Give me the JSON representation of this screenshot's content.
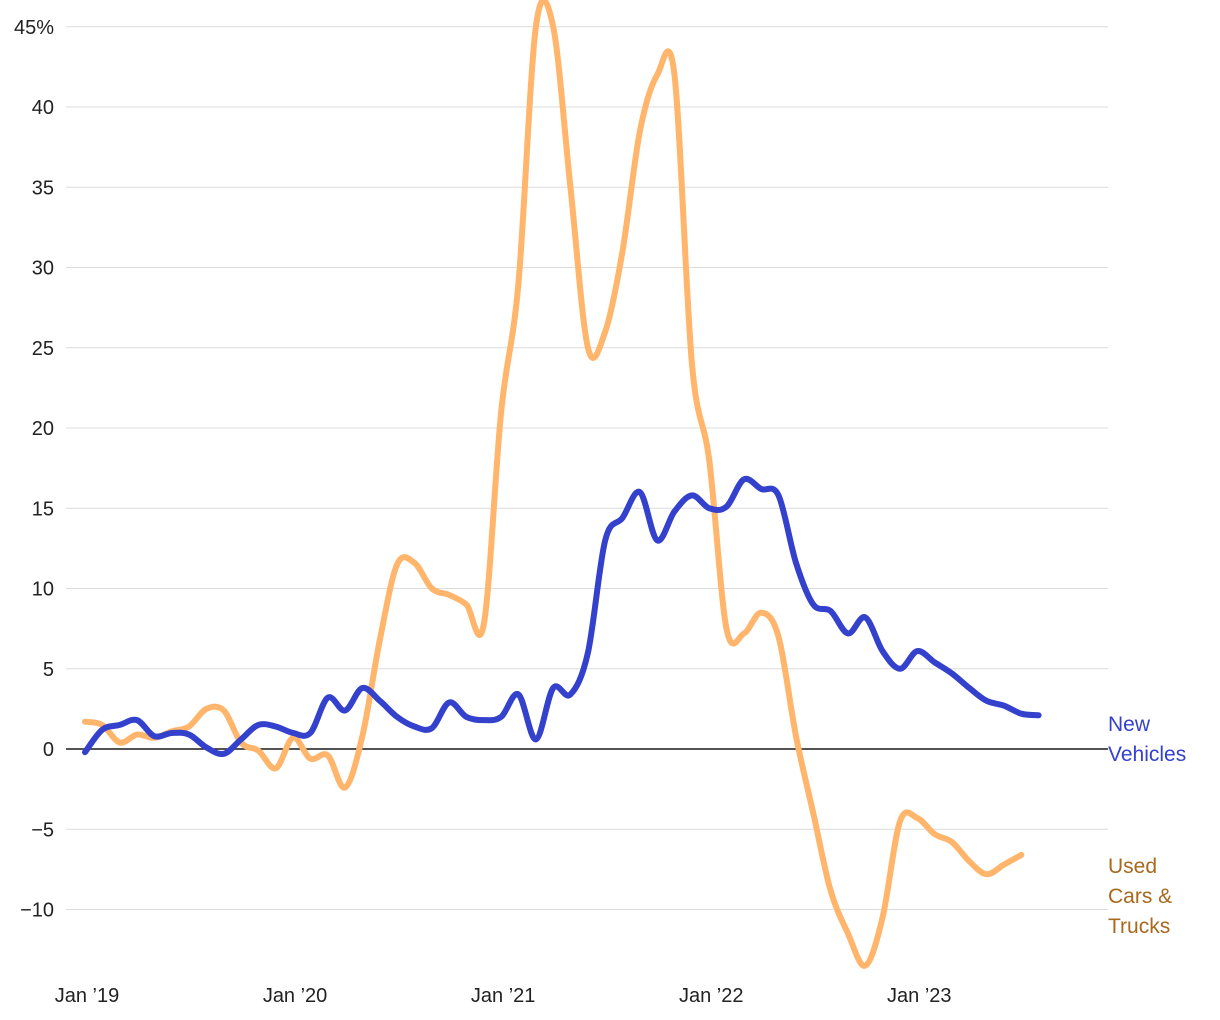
{
  "chart_data": {
    "type": "line",
    "title": "",
    "xlabel": "",
    "ylabel": "",
    "ylim": [
      -13.8,
      46
    ],
    "xlim": [
      2019.0,
      2023.83
    ],
    "y_ticks": [
      {
        "value": 45,
        "label": "45%"
      },
      {
        "value": 40,
        "label": "40"
      },
      {
        "value": 35,
        "label": "35"
      },
      {
        "value": 30,
        "label": "30"
      },
      {
        "value": 25,
        "label": "25"
      },
      {
        "value": 20,
        "label": "20"
      },
      {
        "value": 15,
        "label": "15"
      },
      {
        "value": 10,
        "label": "10"
      },
      {
        "value": 5,
        "label": "5"
      },
      {
        "value": 0,
        "label": "0"
      },
      {
        "value": -5,
        "label": "−5"
      },
      {
        "value": -10,
        "label": "−10"
      }
    ],
    "x_ticks": [
      {
        "value": 2019.0,
        "label": "Jan ’19"
      },
      {
        "value": 2020.0,
        "label": "Jan ’20"
      },
      {
        "value": 2021.0,
        "label": "Jan ’21"
      },
      {
        "value": 2022.0,
        "label": "Jan ’22"
      },
      {
        "value": 2023.0,
        "label": "Jan ’23"
      }
    ],
    "grid": true,
    "legend": "direct labels at line ends (right)",
    "series": [
      {
        "name": "New Vehicles",
        "label_lines": [
          "New",
          "Vehicles"
        ],
        "color": "#3441cc",
        "label_color": "#3441cc",
        "points": [
          [
            2019.0,
            -0.2
          ],
          [
            2019.083,
            1.2
          ],
          [
            2019.167,
            1.5
          ],
          [
            2019.25,
            1.8
          ],
          [
            2019.333,
            0.8
          ],
          [
            2019.417,
            1.0
          ],
          [
            2019.5,
            0.9
          ],
          [
            2019.583,
            0.1
          ],
          [
            2019.667,
            -0.3
          ],
          [
            2019.75,
            0.6
          ],
          [
            2019.833,
            1.5
          ],
          [
            2019.917,
            1.4
          ],
          [
            2020.0,
            1.0
          ],
          [
            2020.083,
            1.0
          ],
          [
            2020.167,
            3.2
          ],
          [
            2020.25,
            2.4
          ],
          [
            2020.333,
            3.8
          ],
          [
            2020.417,
            3.0
          ],
          [
            2020.5,
            2.0
          ],
          [
            2020.583,
            1.4
          ],
          [
            2020.667,
            1.3
          ],
          [
            2020.75,
            2.9
          ],
          [
            2020.833,
            2.0
          ],
          [
            2020.917,
            1.8
          ],
          [
            2021.0,
            2.0
          ],
          [
            2021.083,
            3.4
          ],
          [
            2021.167,
            0.6
          ],
          [
            2021.25,
            3.8
          ],
          [
            2021.333,
            3.4
          ],
          [
            2021.417,
            6.0
          ],
          [
            2021.5,
            13.0
          ],
          [
            2021.583,
            14.4
          ],
          [
            2021.667,
            16.0
          ],
          [
            2021.75,
            13.0
          ],
          [
            2021.833,
            14.8
          ],
          [
            2021.917,
            15.8
          ],
          [
            2022.0,
            15.0
          ],
          [
            2022.083,
            15.1
          ],
          [
            2022.167,
            16.8
          ],
          [
            2022.25,
            16.2
          ],
          [
            2022.333,
            15.8
          ],
          [
            2022.417,
            11.6
          ],
          [
            2022.5,
            9.0
          ],
          [
            2022.583,
            8.6
          ],
          [
            2022.667,
            7.2
          ],
          [
            2022.75,
            8.2
          ],
          [
            2022.833,
            6.1
          ],
          [
            2022.917,
            5.0
          ],
          [
            2023.0,
            6.1
          ],
          [
            2023.083,
            5.4
          ],
          [
            2023.167,
            4.7
          ],
          [
            2023.25,
            3.8
          ],
          [
            2023.333,
            3.0
          ],
          [
            2023.417,
            2.7
          ],
          [
            2023.5,
            2.2
          ],
          [
            2023.583,
            2.1
          ]
        ]
      },
      {
        "name": "Used Cars & Trucks",
        "label_lines": [
          "Used",
          "Cars &",
          "Trucks"
        ],
        "color": "#ffb56b",
        "label_color": "#a8691e",
        "points": [
          [
            2019.0,
            1.7
          ],
          [
            2019.083,
            1.5
          ],
          [
            2019.167,
            0.4
          ],
          [
            2019.25,
            0.9
          ],
          [
            2019.333,
            0.7
          ],
          [
            2019.417,
            1.1
          ],
          [
            2019.5,
            1.4
          ],
          [
            2019.583,
            2.5
          ],
          [
            2019.667,
            2.4
          ],
          [
            2019.75,
            0.4
          ],
          [
            2019.833,
            -0.1
          ],
          [
            2019.917,
            -1.2
          ],
          [
            2020.0,
            0.7
          ],
          [
            2020.083,
            -0.6
          ],
          [
            2020.167,
            -0.4
          ],
          [
            2020.25,
            -2.4
          ],
          [
            2020.333,
            0.8
          ],
          [
            2020.417,
            6.8
          ],
          [
            2020.5,
            11.5
          ],
          [
            2020.583,
            11.6
          ],
          [
            2020.667,
            10.0
          ],
          [
            2020.75,
            9.6
          ],
          [
            2020.833,
            9.0
          ],
          [
            2020.917,
            7.8
          ],
          [
            2021.0,
            21.0
          ],
          [
            2021.083,
            29.0
          ],
          [
            2021.167,
            45.0
          ],
          [
            2021.25,
            45.0
          ],
          [
            2021.333,
            35.0
          ],
          [
            2021.417,
            25.0
          ],
          [
            2021.5,
            26.0
          ],
          [
            2021.583,
            31.0
          ],
          [
            2021.667,
            38.5
          ],
          [
            2021.75,
            42.0
          ],
          [
            2021.833,
            42.0
          ],
          [
            2021.917,
            24.0
          ],
          [
            2022.0,
            18.0
          ],
          [
            2022.083,
            7.5
          ],
          [
            2022.167,
            7.2
          ],
          [
            2022.25,
            8.5
          ],
          [
            2022.333,
            7.0
          ],
          [
            2022.417,
            0.8
          ],
          [
            2022.5,
            -4.0
          ],
          [
            2022.583,
            -8.8
          ],
          [
            2022.667,
            -11.5
          ],
          [
            2022.75,
            -13.5
          ],
          [
            2022.833,
            -10.5
          ],
          [
            2022.917,
            -4.5
          ],
          [
            2023.0,
            -4.3
          ],
          [
            2023.083,
            -5.3
          ],
          [
            2023.167,
            -5.8
          ],
          [
            2023.25,
            -7.0
          ],
          [
            2023.333,
            -7.8
          ],
          [
            2023.417,
            -7.2
          ],
          [
            2023.5,
            -6.6
          ]
        ]
      }
    ]
  }
}
